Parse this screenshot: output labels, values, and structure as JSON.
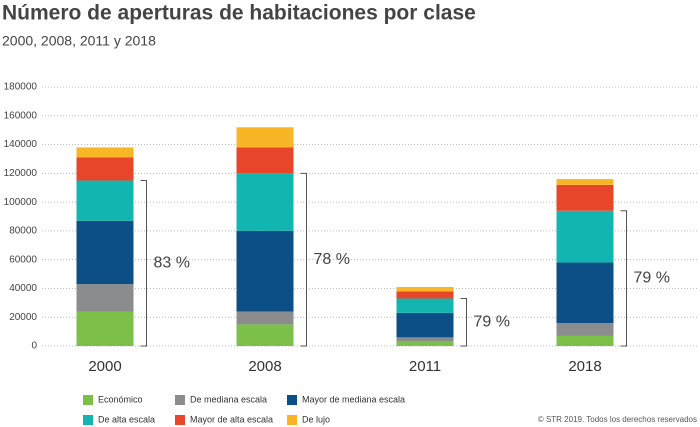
{
  "chart_data": {
    "type": "stacked_bar",
    "title": "Número de aperturas de habitaciones por clase",
    "subtitle": "2000, 2008, 2011 y 2018",
    "categories": [
      "2000",
      "2008",
      "2011",
      "2018"
    ],
    "series": [
      {
        "name": "Económico",
        "color": "#7cc04a",
        "values": [
          24000,
          15000,
          3000,
          7000
        ]
      },
      {
        "name": "De mediana escala",
        "color": "#8a8c8e",
        "values": [
          19000,
          9000,
          3000,
          9000
        ]
      },
      {
        "name": "Mayor de mediana escala",
        "color": "#0b4f86",
        "values": [
          44000,
          56000,
          17000,
          42000
        ]
      },
      {
        "name": "De alta escala",
        "color": "#13b5b1",
        "values": [
          28000,
          40000,
          10000,
          36000
        ]
      },
      {
        "name": "Mayor de alta escala",
        "color": "#e8462a",
        "values": [
          16000,
          18000,
          5000,
          18000
        ]
      },
      {
        "name": "De lujo",
        "color": "#f8b627",
        "values": [
          7000,
          14000,
          3000,
          4000
        ]
      }
    ],
    "annotations": [
      "83 %",
      "78 %",
      "79 %",
      "79 %"
    ],
    "ylim": [
      0,
      180000
    ],
    "yticks": [
      0,
      20000,
      40000,
      60000,
      80000,
      100000,
      120000,
      140000,
      160000,
      180000
    ],
    "grid": true,
    "copyright": "© STR 2019. Todos los derechos reservados"
  }
}
